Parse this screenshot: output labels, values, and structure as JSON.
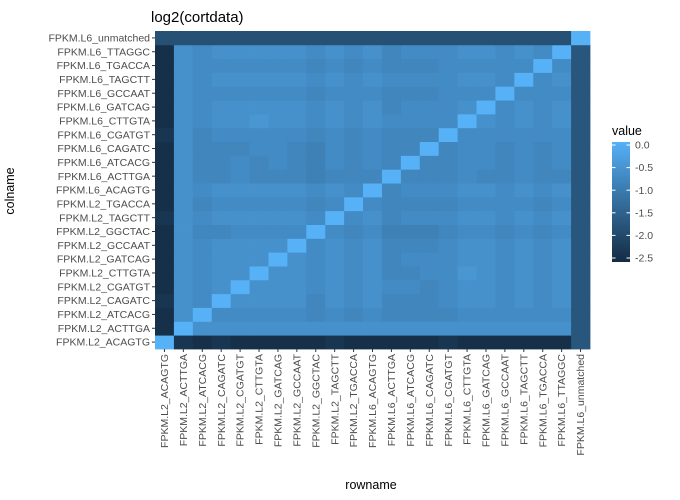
{
  "chart_data": {
    "type": "heatmap",
    "title": "log2(cortdata)",
    "xlabel": "rowname",
    "ylabel": "colname",
    "x_categories": [
      "FPKM.L2_ACAGTG",
      "FPKM.L2_ACTTGA",
      "FPKM.L2_ATCACG",
      "FPKM.L2_CAGATC",
      "FPKM.L2_CGATGT",
      "FPKM.L2_CTTGTA",
      "FPKM.L2_GATCAG",
      "FPKM.L2_GCCAAT",
      "FPKM.L2_GGCTAC",
      "FPKM.L2_TAGCTT",
      "FPKM.L2_TGACCA",
      "FPKM.L6_ACAGTG",
      "FPKM.L6_ACTTGA",
      "FPKM.L6_ATCACG",
      "FPKM.L6_CAGATC",
      "FPKM.L6_CGATGT",
      "FPKM.L6_CTTGTA",
      "FPKM.L6_GATCAG",
      "FPKM.L6_GCCAAT",
      "FPKM.L6_TAGCTT",
      "FPKM.L6_TGACCA",
      "FPKM.L6_TTAGGC",
      "FPKM.L6_unmatched"
    ],
    "y_categories_bottom_to_top": [
      "FPKM.L2_ACAGTG",
      "FPKM.L2_ACTTGA",
      "FPKM.L2_ATCACG",
      "FPKM.L2_CAGATC",
      "FPKM.L2_CGATGT",
      "FPKM.L2_CTTGTA",
      "FPKM.L2_GATCAG",
      "FPKM.L2_GCCAAT",
      "FPKM.L2_GGCTAC",
      "FPKM.L2_TAGCTT",
      "FPKM.L2_TGACCA",
      "FPKM.L6_ACAGTG",
      "FPKM.L6_ACTTGA",
      "FPKM.L6_ATCACG",
      "FPKM.L6_CAGATC",
      "FPKM.L6_CGATGT",
      "FPKM.L6_CTTGTA",
      "FPKM.L6_GATCAG",
      "FPKM.L6_GCCAAT",
      "FPKM.L6_TAGCTT",
      "FPKM.L6_TGACCA",
      "FPKM.L6_TTAGGC",
      "FPKM.L6_unmatched"
    ],
    "values_rows_bottom_to_top": [
      [
        0,
        -2.3,
        -2.4,
        -2.3,
        -2.4,
        -2.4,
        -2.4,
        -2.4,
        -2.4,
        -2.3,
        -2.4,
        -2.4,
        -2.4,
        -2.4,
        -2.4,
        -2.3,
        -2.4,
        -2.4,
        -2.4,
        -2.4,
        -2.4,
        -2.4,
        -1.7
      ],
      [
        -2.4,
        0,
        -0.6,
        -0.6,
        -0.6,
        -0.6,
        -0.6,
        -0.6,
        -0.6,
        -0.6,
        -0.6,
        -0.6,
        -0.6,
        -0.6,
        -0.6,
        -0.6,
        -0.6,
        -0.6,
        -0.6,
        -0.6,
        -0.6,
        -0.6,
        -1.7
      ],
      [
        -2.4,
        -0.6,
        0,
        -0.7,
        -0.7,
        -0.7,
        -0.7,
        -0.7,
        -0.8,
        -0.7,
        -0.8,
        -0.7,
        -0.8,
        -0.8,
        -0.8,
        -0.8,
        -0.7,
        -0.7,
        -0.7,
        -0.7,
        -0.7,
        -0.7,
        -1.7
      ],
      [
        -2.3,
        -0.6,
        -0.7,
        0,
        -0.6,
        -0.6,
        -0.6,
        -0.6,
        -0.8,
        -0.6,
        -0.7,
        -0.6,
        -0.8,
        -0.8,
        -0.8,
        -0.7,
        -0.6,
        -0.6,
        -0.7,
        -0.6,
        -0.7,
        -0.6,
        -1.7
      ],
      [
        -2.4,
        -0.6,
        -0.7,
        -0.6,
        0,
        -0.6,
        -0.6,
        -0.6,
        -0.7,
        -0.6,
        -0.7,
        -0.6,
        -0.7,
        -0.7,
        -0.8,
        -0.7,
        -0.6,
        -0.6,
        -0.7,
        -0.6,
        -0.7,
        -0.6,
        -1.7
      ],
      [
        -2.4,
        -0.6,
        -0.7,
        -0.6,
        -0.6,
        0,
        -0.6,
        -0.6,
        -0.7,
        -0.6,
        -0.7,
        -0.6,
        -0.8,
        -0.8,
        -0.7,
        -0.7,
        -0.5,
        -0.6,
        -0.7,
        -0.6,
        -0.7,
        -0.6,
        -1.7
      ],
      [
        -2.4,
        -0.6,
        -0.7,
        -0.6,
        -0.6,
        -0.6,
        0,
        -0.6,
        -0.7,
        -0.6,
        -0.7,
        -0.6,
        -0.8,
        -0.7,
        -0.7,
        -0.7,
        -0.6,
        -0.6,
        -0.7,
        -0.6,
        -0.7,
        -0.6,
        -1.7
      ],
      [
        -2.4,
        -0.6,
        -0.7,
        -0.6,
        -0.6,
        -0.6,
        -0.6,
        0,
        -0.7,
        -0.6,
        -0.7,
        -0.6,
        -0.8,
        -0.8,
        -0.8,
        -0.7,
        -0.6,
        -0.6,
        -0.7,
        -0.6,
        -0.7,
        -0.6,
        -1.7
      ],
      [
        -2.4,
        -0.6,
        -0.8,
        -0.8,
        -0.7,
        -0.7,
        -0.7,
        -0.7,
        0,
        -0.7,
        -0.8,
        -0.7,
        -0.9,
        -0.9,
        -0.9,
        -0.8,
        -0.7,
        -0.7,
        -0.8,
        -0.7,
        -0.8,
        -0.7,
        -1.7
      ],
      [
        -2.3,
        -0.6,
        -0.7,
        -0.6,
        -0.6,
        -0.6,
        -0.6,
        -0.6,
        -0.7,
        0,
        -0.7,
        -0.6,
        -0.8,
        -0.7,
        -0.7,
        -0.7,
        -0.6,
        -0.6,
        -0.7,
        -0.6,
        -0.7,
        -0.6,
        -1.7
      ],
      [
        -2.4,
        -0.6,
        -0.8,
        -0.7,
        -0.7,
        -0.7,
        -0.7,
        -0.7,
        -0.8,
        -0.7,
        0,
        -0.7,
        -0.8,
        -0.8,
        -0.8,
        -0.8,
        -0.7,
        -0.7,
        -0.7,
        -0.7,
        -0.8,
        -0.7,
        -1.7
      ],
      [
        -2.4,
        -0.6,
        -0.7,
        -0.6,
        -0.6,
        -0.6,
        -0.6,
        -0.6,
        -0.7,
        -0.6,
        -0.7,
        0,
        -0.8,
        -0.7,
        -0.7,
        -0.7,
        -0.6,
        -0.6,
        -0.7,
        -0.6,
        -0.7,
        -0.6,
        -1.7
      ],
      [
        -2.4,
        -0.6,
        -0.8,
        -0.8,
        -0.7,
        -0.8,
        -0.8,
        -0.8,
        -0.9,
        -0.8,
        -0.8,
        -0.8,
        0,
        -0.8,
        -0.8,
        -0.8,
        -0.7,
        -0.8,
        -0.8,
        -0.7,
        -0.8,
        -0.8,
        -1.7
      ],
      [
        -2.4,
        -0.6,
        -0.8,
        -0.8,
        -0.7,
        -0.8,
        -0.7,
        -0.8,
        -0.9,
        -0.7,
        -0.8,
        -0.7,
        -0.8,
        0,
        -0.8,
        -0.8,
        -0.7,
        -0.7,
        -0.8,
        -0.7,
        -0.8,
        -0.7,
        -1.7
      ],
      [
        -2.4,
        -0.6,
        -0.8,
        -0.8,
        -0.8,
        -0.7,
        -0.7,
        -0.8,
        -0.9,
        -0.7,
        -0.8,
        -0.7,
        -0.8,
        -0.8,
        0,
        -0.8,
        -0.7,
        -0.7,
        -0.8,
        -0.7,
        -0.8,
        -0.7,
        -1.7
      ],
      [
        -2.3,
        -0.6,
        -0.8,
        -0.7,
        -0.7,
        -0.7,
        -0.7,
        -0.7,
        -0.8,
        -0.7,
        -0.8,
        -0.7,
        -0.8,
        -0.8,
        -0.8,
        0,
        -0.7,
        -0.7,
        -0.7,
        -0.7,
        -0.7,
        -0.7,
        -1.7
      ],
      [
        -2.4,
        -0.6,
        -0.7,
        -0.6,
        -0.6,
        -0.5,
        -0.6,
        -0.6,
        -0.7,
        -0.6,
        -0.7,
        -0.6,
        -0.7,
        -0.7,
        -0.7,
        -0.7,
        0,
        -0.6,
        -0.7,
        -0.6,
        -0.7,
        -0.6,
        -1.7
      ],
      [
        -2.4,
        -0.6,
        -0.7,
        -0.6,
        -0.6,
        -0.6,
        -0.6,
        -0.6,
        -0.7,
        -0.6,
        -0.7,
        -0.6,
        -0.8,
        -0.7,
        -0.7,
        -0.7,
        -0.6,
        0,
        -0.7,
        -0.6,
        -0.7,
        -0.6,
        -1.7
      ],
      [
        -2.4,
        -0.6,
        -0.7,
        -0.7,
        -0.7,
        -0.7,
        -0.7,
        -0.7,
        -0.8,
        -0.7,
        -0.7,
        -0.7,
        -0.8,
        -0.8,
        -0.8,
        -0.7,
        -0.7,
        -0.7,
        0,
        -0.7,
        -0.7,
        -0.7,
        -1.7
      ],
      [
        -2.4,
        -0.6,
        -0.7,
        -0.6,
        -0.6,
        -0.6,
        -0.6,
        -0.6,
        -0.7,
        -0.6,
        -0.7,
        -0.6,
        -0.7,
        -0.7,
        -0.7,
        -0.7,
        -0.6,
        -0.6,
        -0.7,
        0,
        -0.7,
        -0.6,
        -1.7
      ],
      [
        -2.4,
        -0.6,
        -0.7,
        -0.7,
        -0.7,
        -0.7,
        -0.7,
        -0.7,
        -0.8,
        -0.7,
        -0.8,
        -0.7,
        -0.8,
        -0.8,
        -0.8,
        -0.7,
        -0.7,
        -0.7,
        -0.7,
        -0.7,
        0,
        -0.7,
        -1.7
      ],
      [
        -2.4,
        -0.6,
        -0.7,
        -0.6,
        -0.6,
        -0.6,
        -0.6,
        -0.6,
        -0.7,
        -0.6,
        -0.7,
        -0.6,
        -0.8,
        -0.7,
        -0.7,
        -0.7,
        -0.6,
        -0.6,
        -0.7,
        -0.6,
        -0.7,
        0,
        -1.7
      ],
      [
        -1.8,
        -1.8,
        -1.8,
        -1.8,
        -1.8,
        -1.8,
        -1.8,
        -1.8,
        -1.8,
        -1.8,
        -1.8,
        -1.8,
        -1.8,
        -1.8,
        -1.8,
        -1.8,
        -1.8,
        -1.8,
        -1.8,
        -1.8,
        -1.8,
        -1.8,
        0
      ]
    ],
    "legend": {
      "title": "value",
      "ticks": [
        0.0,
        -0.5,
        -1.0,
        -1.5,
        -2.0,
        -2.5
      ],
      "tick_labels": [
        "0.0",
        "-0.5",
        "-1.0",
        "-1.5",
        "-2.0",
        "-2.5"
      ],
      "range": [
        -2.5,
        0
      ],
      "position": "right"
    },
    "color_scale": {
      "low": "#132B43",
      "high": "#56B1F7"
    }
  }
}
